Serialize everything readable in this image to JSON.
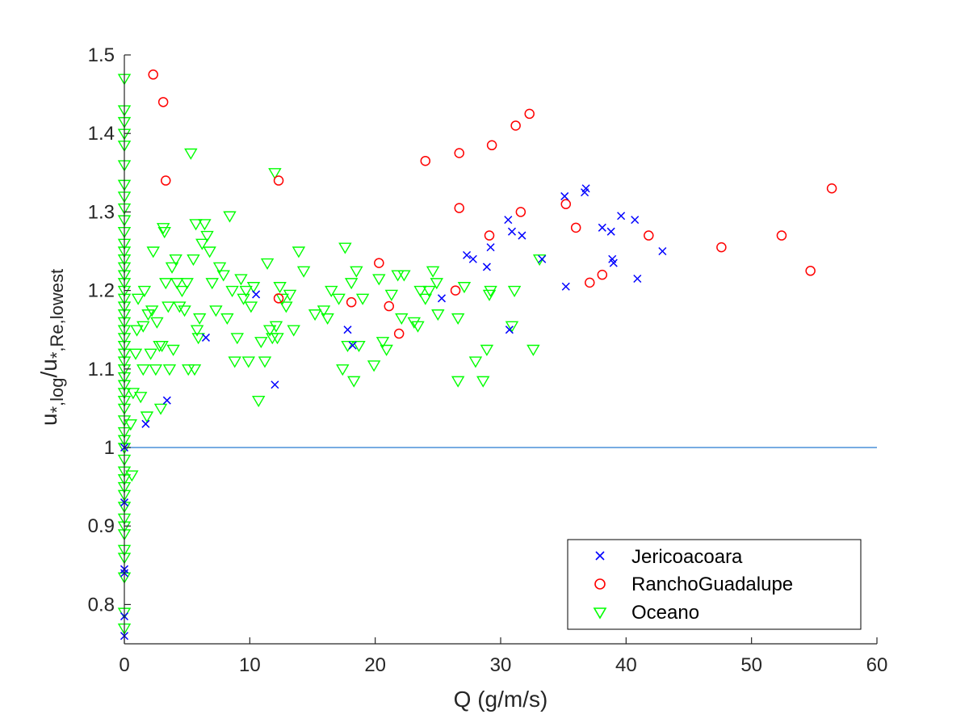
{
  "colors": {
    "jericoacoara": "#0000ff",
    "ranchoguadalupe": "#ff0000",
    "oceano": "#00ff00",
    "reference_line": "#4a90d9",
    "axis": "#262626"
  },
  "chart_data": {
    "type": "scatter",
    "xlabel": "Q (g/m/s)",
    "ylabel": {
      "base": "u",
      "sub1": "*,log",
      "slash": "/u",
      "sub2": "*,Re,lowest"
    },
    "xlim": [
      0,
      60
    ],
    "ylim": [
      0.75,
      1.5
    ],
    "xticks": [
      "0",
      "10",
      "20",
      "30",
      "40",
      "50",
      "60"
    ],
    "yticks": [
      "0.8",
      "0.9",
      "1",
      "1.1",
      "1.2",
      "1.3",
      "1.4",
      "1.5"
    ],
    "reference_line": {
      "y": 1.0,
      "x_range": [
        0,
        60
      ]
    },
    "legend_position": "bottom-right",
    "series": [
      {
        "name": "Jericoacoara",
        "marker": "x",
        "points": [
          [
            0,
            0.76
          ],
          [
            0,
            0.785
          ],
          [
            0,
            0.84
          ],
          [
            0,
            0.845
          ],
          [
            0,
            0.93
          ],
          [
            0,
            1.0
          ],
          [
            1.7,
            1.03
          ],
          [
            3.4,
            1.06
          ],
          [
            6.5,
            1.14
          ],
          [
            10.5,
            1.195
          ],
          [
            12.0,
            1.08
          ],
          [
            17.8,
            1.15
          ],
          [
            18.2,
            1.13
          ],
          [
            25.3,
            1.19
          ],
          [
            27.3,
            1.245
          ],
          [
            27.8,
            1.24
          ],
          [
            28.9,
            1.23
          ],
          [
            29.2,
            1.255
          ],
          [
            30.6,
            1.29
          ],
          [
            30.9,
            1.275
          ],
          [
            31.7,
            1.27
          ],
          [
            30.7,
            1.15
          ],
          [
            33.3,
            1.24
          ],
          [
            35.1,
            1.32
          ],
          [
            35.2,
            1.205
          ],
          [
            36.7,
            1.325
          ],
          [
            36.8,
            1.33
          ],
          [
            38.1,
            1.28
          ],
          [
            38.8,
            1.275
          ],
          [
            38.9,
            1.24
          ],
          [
            39.0,
            1.235
          ],
          [
            39.6,
            1.295
          ],
          [
            40.7,
            1.29
          ],
          [
            40.9,
            1.215
          ],
          [
            42.9,
            1.25
          ]
        ]
      },
      {
        "name": "RanchoGuadalupe",
        "marker": "o",
        "points": [
          [
            2.3,
            1.475
          ],
          [
            3.1,
            1.44
          ],
          [
            3.3,
            1.34
          ],
          [
            12.3,
            1.34
          ],
          [
            12.3,
            1.19
          ],
          [
            18.1,
            1.185
          ],
          [
            20.3,
            1.235
          ],
          [
            21.1,
            1.18
          ],
          [
            21.9,
            1.145
          ],
          [
            24.0,
            1.365
          ],
          [
            26.4,
            1.2
          ],
          [
            26.7,
            1.375
          ],
          [
            26.7,
            1.305
          ],
          [
            29.1,
            1.27
          ],
          [
            29.3,
            1.385
          ],
          [
            31.2,
            1.41
          ],
          [
            31.6,
            1.3
          ],
          [
            32.3,
            1.425
          ],
          [
            35.2,
            1.31
          ],
          [
            36.0,
            1.28
          ],
          [
            37.1,
            1.21
          ],
          [
            38.1,
            1.22
          ],
          [
            41.8,
            1.27
          ],
          [
            47.6,
            1.255
          ],
          [
            52.4,
            1.27
          ],
          [
            54.7,
            1.225
          ],
          [
            56.4,
            1.33
          ]
        ]
      },
      {
        "name": "Oceano",
        "marker": "triangle-down",
        "points": [
          [
            0,
            0.77
          ],
          [
            0,
            0.79
          ],
          [
            0,
            0.835
          ],
          [
            0,
            0.86
          ],
          [
            0,
            0.87
          ],
          [
            0,
            0.89
          ],
          [
            0,
            0.9
          ],
          [
            0,
            0.91
          ],
          [
            0,
            0.925
          ],
          [
            0,
            0.94
          ],
          [
            0,
            0.95
          ],
          [
            0,
            0.96
          ],
          [
            0,
            0.97
          ],
          [
            0,
            0.985
          ],
          [
            0,
            1.0
          ],
          [
            0,
            1.01
          ],
          [
            0,
            1.02
          ],
          [
            0,
            1.035
          ],
          [
            0,
            1.05
          ],
          [
            0,
            1.06
          ],
          [
            0,
            1.07
          ],
          [
            0,
            1.08
          ],
          [
            0,
            1.09
          ],
          [
            0,
            1.1
          ],
          [
            0,
            1.11
          ],
          [
            0,
            1.12
          ],
          [
            0,
            1.13
          ],
          [
            0,
            1.14
          ],
          [
            0,
            1.15
          ],
          [
            0,
            1.16
          ],
          [
            0,
            1.17
          ],
          [
            0,
            1.18
          ],
          [
            0,
            1.19
          ],
          [
            0,
            1.2
          ],
          [
            0,
            1.21
          ],
          [
            0,
            1.22
          ],
          [
            0,
            1.23
          ],
          [
            0,
            1.24
          ],
          [
            0,
            1.25
          ],
          [
            0,
            1.26
          ],
          [
            0,
            1.275
          ],
          [
            0,
            1.29
          ],
          [
            0,
            1.305
          ],
          [
            0,
            1.32
          ],
          [
            0,
            1.335
          ],
          [
            0,
            1.36
          ],
          [
            0,
            1.385
          ],
          [
            0,
            1.4
          ],
          [
            0,
            1.415
          ],
          [
            0,
            1.43
          ],
          [
            0,
            1.47
          ],
          [
            0.6,
            0.965
          ],
          [
            0.5,
            1.03
          ],
          [
            0.7,
            1.07
          ],
          [
            0.9,
            1.12
          ],
          [
            1.0,
            1.15
          ],
          [
            1.1,
            1.19
          ],
          [
            1.3,
            1.065
          ],
          [
            1.5,
            1.1
          ],
          [
            1.5,
            1.155
          ],
          [
            1.6,
            1.2
          ],
          [
            1.8,
            1.04
          ],
          [
            1.9,
            1.17
          ],
          [
            2.1,
            1.12
          ],
          [
            2.2,
            1.175
          ],
          [
            2.3,
            1.25
          ],
          [
            2.5,
            1.1
          ],
          [
            2.6,
            1.16
          ],
          [
            2.8,
            1.13
          ],
          [
            2.9,
            1.05
          ],
          [
            3.0,
            1.13
          ],
          [
            3.1,
            1.28
          ],
          [
            3.2,
            1.275
          ],
          [
            3.3,
            1.21
          ],
          [
            3.5,
            1.18
          ],
          [
            3.6,
            1.1
          ],
          [
            3.8,
            1.23
          ],
          [
            3.9,
            1.125
          ],
          [
            4.1,
            1.24
          ],
          [
            4.2,
            1.21
          ],
          [
            4.4,
            1.18
          ],
          [
            4.6,
            1.2
          ],
          [
            4.8,
            1.175
          ],
          [
            5.0,
            1.21
          ],
          [
            5.1,
            1.1
          ],
          [
            5.3,
            1.375
          ],
          [
            5.5,
            1.24
          ],
          [
            5.6,
            1.1
          ],
          [
            5.7,
            1.285
          ],
          [
            5.8,
            1.15
          ],
          [
            5.9,
            1.14
          ],
          [
            6.0,
            1.165
          ],
          [
            6.2,
            1.26
          ],
          [
            6.4,
            1.285
          ],
          [
            6.6,
            1.27
          ],
          [
            6.8,
            1.25
          ],
          [
            7.0,
            1.21
          ],
          [
            7.3,
            1.175
          ],
          [
            7.6,
            1.23
          ],
          [
            7.9,
            1.22
          ],
          [
            8.2,
            1.165
          ],
          [
            8.4,
            1.295
          ],
          [
            8.6,
            1.2
          ],
          [
            8.8,
            1.11
          ],
          [
            9.0,
            1.14
          ],
          [
            9.3,
            1.215
          ],
          [
            9.5,
            1.19
          ],
          [
            9.7,
            1.2
          ],
          [
            9.9,
            1.11
          ],
          [
            10.1,
            1.18
          ],
          [
            10.3,
            1.205
          ],
          [
            10.7,
            1.06
          ],
          [
            10.9,
            1.135
          ],
          [
            11.2,
            1.11
          ],
          [
            11.4,
            1.235
          ],
          [
            11.6,
            1.15
          ],
          [
            11.8,
            1.14
          ],
          [
            12.0,
            1.35
          ],
          [
            12.1,
            1.155
          ],
          [
            12.2,
            1.14
          ],
          [
            12.4,
            1.205
          ],
          [
            12.6,
            1.19
          ],
          [
            12.9,
            1.18
          ],
          [
            13.2,
            1.195
          ],
          [
            13.5,
            1.15
          ],
          [
            13.9,
            1.25
          ],
          [
            14.3,
            1.225
          ],
          [
            15.2,
            1.17
          ],
          [
            15.9,
            1.175
          ],
          [
            16.2,
            1.165
          ],
          [
            16.5,
            1.2
          ],
          [
            17.1,
            1.19
          ],
          [
            17.4,
            1.1
          ],
          [
            17.6,
            1.255
          ],
          [
            17.8,
            1.13
          ],
          [
            18.1,
            1.21
          ],
          [
            18.3,
            1.085
          ],
          [
            18.5,
            1.225
          ],
          [
            18.7,
            1.13
          ],
          [
            19.0,
            1.19
          ],
          [
            19.9,
            1.105
          ],
          [
            20.3,
            1.215
          ],
          [
            20.6,
            1.135
          ],
          [
            20.9,
            1.125
          ],
          [
            21.3,
            1.195
          ],
          [
            21.8,
            1.22
          ],
          [
            22.1,
            1.165
          ],
          [
            22.3,
            1.22
          ],
          [
            23.1,
            1.16
          ],
          [
            23.4,
            1.155
          ],
          [
            23.6,
            1.2
          ],
          [
            24.0,
            1.19
          ],
          [
            24.3,
            1.2
          ],
          [
            24.6,
            1.225
          ],
          [
            24.9,
            1.21
          ],
          [
            25.0,
            1.17
          ],
          [
            26.6,
            1.165
          ],
          [
            26.6,
            1.085
          ],
          [
            27.1,
            1.205
          ],
          [
            28.0,
            1.11
          ],
          [
            28.6,
            1.085
          ],
          [
            28.9,
            1.125
          ],
          [
            29.1,
            1.195
          ],
          [
            29.2,
            1.2
          ],
          [
            30.9,
            1.155
          ],
          [
            31.1,
            1.2
          ],
          [
            32.6,
            1.125
          ],
          [
            33.1,
            1.24
          ]
        ]
      }
    ]
  }
}
